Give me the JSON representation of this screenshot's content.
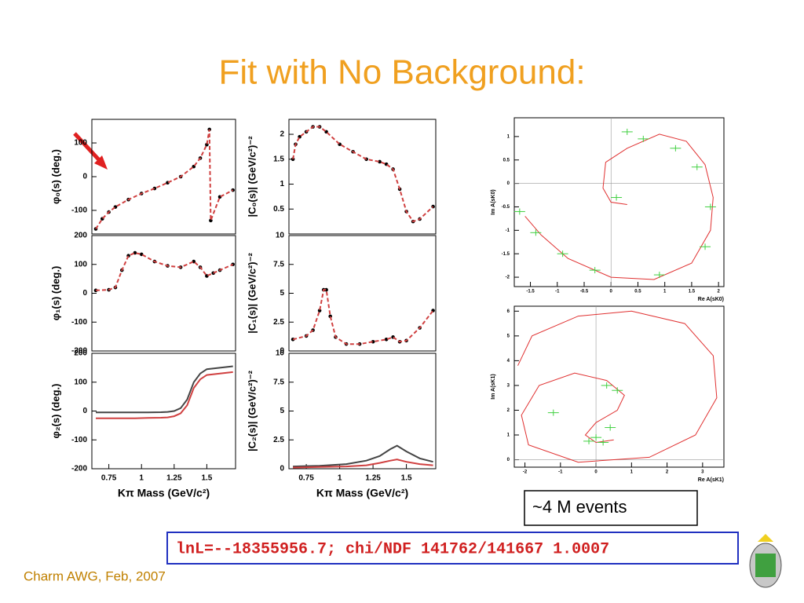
{
  "title": "Fit with No Background:",
  "footer": "Charm AWG, Feb, 2007",
  "events": "~4 M events",
  "fit_result": "lnL=--18355956.7; chi/NDF 141762/141667 1.0007",
  "chart_data": [
    {
      "type": "line",
      "ylabel": "φ₀(s)  (deg.)",
      "x": [
        0.65,
        0.7,
        0.75,
        0.8,
        0.9,
        1.0,
        1.1,
        1.2,
        1.3,
        1.4,
        1.45,
        1.5,
        1.52,
        1.53,
        1.6,
        1.7
      ],
      "series": [
        {
          "color": "#000000",
          "markers": true,
          "values": [
            -155,
            -125,
            -105,
            -90,
            -68,
            -50,
            -35,
            -18,
            0,
            30,
            55,
            95,
            140,
            -130,
            -60,
            -40
          ]
        },
        {
          "color": "#d04040",
          "values": [
            -155,
            -125,
            -105,
            -90,
            -68,
            -50,
            -35,
            -18,
            0,
            30,
            55,
            95,
            140,
            -130,
            -60,
            -40
          ]
        }
      ],
      "xlim": [
        0.62,
        1.72
      ],
      "ylim": [
        -170,
        170
      ],
      "yticks": [
        -100,
        0,
        100
      ]
    },
    {
      "type": "line",
      "ylabel": "φ₁(s)  (deg.)",
      "x": [
        0.65,
        0.75,
        0.8,
        0.85,
        0.9,
        0.95,
        1.0,
        1.1,
        1.2,
        1.3,
        1.4,
        1.45,
        1.5,
        1.55,
        1.6,
        1.7
      ],
      "series": [
        {
          "color": "#000000",
          "markers": true,
          "values": [
            10,
            12,
            20,
            80,
            130,
            140,
            135,
            110,
            95,
            90,
            110,
            90,
            60,
            70,
            80,
            100
          ]
        },
        {
          "color": "#d04040",
          "values": [
            10,
            12,
            20,
            80,
            130,
            140,
            135,
            110,
            95,
            90,
            110,
            90,
            60,
            70,
            80,
            100
          ]
        }
      ],
      "xlim": [
        0.62,
        1.72
      ],
      "ylim": [
        -200,
        200
      ],
      "yticks": [
        -200,
        -100,
        0,
        100,
        200
      ]
    },
    {
      "type": "line",
      "ylabel": "φ₂(s)  (deg.)",
      "xlabel": "Kπ Mass (GeV/c²)",
      "x": [
        0.65,
        0.75,
        0.85,
        0.95,
        1.05,
        1.15,
        1.2,
        1.25,
        1.3,
        1.35,
        1.4,
        1.45,
        1.5,
        1.6,
        1.7
      ],
      "series": [
        {
          "color": "#444444",
          "values": [
            -5,
            -5,
            -5,
            -5,
            -5,
            -4,
            -3,
            0,
            10,
            40,
            100,
            130,
            145,
            150,
            155
          ]
        },
        {
          "color": "#d04040",
          "values": [
            -25,
            -25,
            -25,
            -25,
            -24,
            -23,
            -22,
            -18,
            -8,
            20,
            80,
            110,
            125,
            130,
            135
          ]
        }
      ],
      "xlim": [
        0.62,
        1.72
      ],
      "ylim": [
        -200,
        200
      ],
      "yticks": [
        -200,
        -100,
        0,
        100,
        200
      ],
      "xticks": [
        0.75,
        1,
        1.25,
        1.5
      ]
    },
    {
      "type": "line",
      "ylabel": "|C₀(s)|  (GeV/c²)⁻²",
      "x": [
        0.65,
        0.67,
        0.7,
        0.75,
        0.8,
        0.85,
        0.9,
        1.0,
        1.1,
        1.2,
        1.3,
        1.35,
        1.4,
        1.45,
        1.5,
        1.55,
        1.6,
        1.7
      ],
      "series": [
        {
          "color": "#000000",
          "markers": true,
          "values": [
            1.5,
            1.8,
            1.95,
            2.05,
            2.15,
            2.15,
            2.05,
            1.8,
            1.65,
            1.5,
            1.45,
            1.4,
            1.3,
            0.9,
            0.45,
            0.25,
            0.3,
            0.55
          ]
        },
        {
          "color": "#d04040",
          "values": [
            1.5,
            1.8,
            1.95,
            2.05,
            2.15,
            2.15,
            2.05,
            1.8,
            1.65,
            1.5,
            1.45,
            1.4,
            1.3,
            0.9,
            0.45,
            0.25,
            0.3,
            0.55
          ]
        }
      ],
      "xlim": [
        0.62,
        1.72
      ],
      "ylim": [
        0,
        2.3
      ],
      "yticks": [
        0.5,
        1,
        1.5,
        2
      ]
    },
    {
      "type": "line",
      "ylabel": "|C₁(s)|  (GeV/c²)⁻²",
      "x": [
        0.65,
        0.75,
        0.8,
        0.85,
        0.88,
        0.9,
        0.93,
        0.97,
        1.05,
        1.15,
        1.25,
        1.35,
        1.4,
        1.45,
        1.5,
        1.6,
        1.7
      ],
      "series": [
        {
          "color": "#000000",
          "markers": true,
          "values": [
            1,
            1.3,
            1.8,
            3.5,
            5.3,
            5.3,
            3,
            1.2,
            0.6,
            0.6,
            0.8,
            1,
            1.2,
            0.8,
            0.9,
            2,
            3.5
          ]
        },
        {
          "color": "#d04040",
          "values": [
            1,
            1.3,
            1.8,
            3.5,
            5.3,
            5.3,
            3,
            1.2,
            0.6,
            0.6,
            0.8,
            1,
            1.2,
            0.8,
            0.9,
            2,
            3.5
          ]
        }
      ],
      "xlim": [
        0.62,
        1.72
      ],
      "ylim": [
        0,
        10
      ],
      "yticks": [
        0,
        2.5,
        5,
        7.5,
        10
      ]
    },
    {
      "type": "line",
      "ylabel": "|C₂(s)|  (GeV/c²)⁻²",
      "xlabel": "Kπ Mass (GeV/c²)",
      "x": [
        0.65,
        0.85,
        1.05,
        1.2,
        1.3,
        1.38,
        1.43,
        1.5,
        1.6,
        1.7
      ],
      "series": [
        {
          "color": "#444444",
          "values": [
            0.2,
            0.25,
            0.4,
            0.7,
            1.1,
            1.7,
            2,
            1.5,
            0.9,
            0.6
          ]
        },
        {
          "color": "#d04040",
          "values": [
            0.1,
            0.15,
            0.2,
            0.3,
            0.5,
            0.7,
            0.8,
            0.6,
            0.4,
            0.3
          ]
        }
      ],
      "xlim": [
        0.62,
        1.72
      ],
      "ylim": [
        0,
        10
      ],
      "yticks": [
        0,
        2.5,
        5,
        7.5,
        10
      ],
      "xticks": [
        0.75,
        1,
        1.25,
        1.5
      ]
    },
    {
      "type": "scatter",
      "ylabel": "Im A(sK0)",
      "xlabel": "Re A(sK0)",
      "series": [
        {
          "color": "#e03030",
          "x": [
            0.3,
            0,
            -0.15,
            -0.1,
            0.3,
            0.9,
            1.4,
            1.75,
            1.9,
            1.85,
            1.5,
            0.8,
            0,
            -0.8,
            -1.3,
            -1.6
          ],
          "values": [
            -0.45,
            -0.4,
            -0.1,
            0.45,
            0.75,
            1.05,
            0.9,
            0.4,
            -0.3,
            -1.0,
            -1.7,
            -2.05,
            -2.0,
            -1.6,
            -1.1,
            -0.7
          ]
        },
        {
          "color": "#40d040",
          "markers": true,
          "x": [
            0.3,
            0.6,
            1.2,
            1.6,
            1.85,
            1.75,
            0.9,
            -0.3,
            -0.9,
            -1.4,
            -1.7,
            0.1
          ],
          "values": [
            1.1,
            0.95,
            0.75,
            0.35,
            -0.5,
            -1.35,
            -1.95,
            -1.85,
            -1.5,
            -1.05,
            -0.6,
            -0.3
          ]
        }
      ],
      "xlim": [
        -1.8,
        2.1
      ],
      "ylim": [
        -2.2,
        1.4
      ],
      "xticks": [
        -1.5,
        -1,
        -0.5,
        0,
        0.5,
        1,
        1.5,
        2
      ],
      "yticks": [
        -2,
        -1.5,
        -1,
        -0.5,
        0,
        0.5,
        1
      ]
    },
    {
      "type": "scatter",
      "ylabel": "Im A(sK1)",
      "xlabel": "Re A(sK1)",
      "series": [
        {
          "color": "#e03030",
          "x": [
            0.5,
            0,
            -0.3,
            0,
            0.6,
            0.8,
            0.3,
            -0.6,
            -1.6,
            -2.1,
            -1.9,
            -0.5,
            1.5,
            2.8,
            3.4,
            3.3,
            2.5,
            1,
            -0.5,
            -1.8,
            -2.2
          ],
          "values": [
            0.8,
            0.7,
            1,
            1.5,
            2,
            2.6,
            3.2,
            3.5,
            3,
            1.8,
            0.6,
            -0.1,
            0.1,
            1,
            2.5,
            4.2,
            5.5,
            6,
            5.8,
            5,
            3.8
          ]
        },
        {
          "color": "#40d040",
          "markers": true,
          "x": [
            0.3,
            0.6,
            -1.2,
            0,
            0.2,
            -0.2,
            0.4
          ],
          "values": [
            3,
            2.8,
            1.9,
            0.9,
            0.7,
            0.75,
            1.3
          ]
        }
      ],
      "xlim": [
        -2.3,
        3.6
      ],
      "ylim": [
        -0.3,
        6.2
      ],
      "xticks": [
        -2,
        -1,
        0,
        1,
        2,
        3
      ],
      "yticks": [
        0,
        1,
        2,
        3,
        4,
        5,
        6
      ]
    }
  ]
}
